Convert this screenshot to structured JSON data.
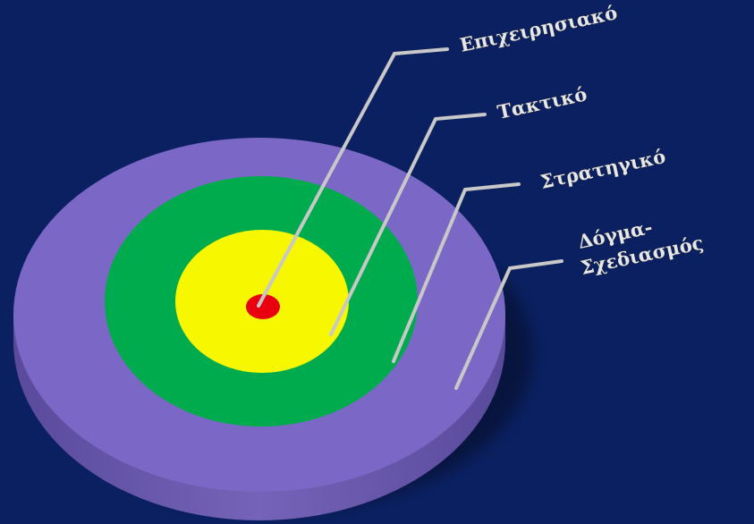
{
  "diagram": {
    "type": "target-rings",
    "rings": [
      {
        "name": "outer-ring",
        "color": "#7b68c6"
      },
      {
        "name": "middle-ring",
        "color": "#00ab4e"
      },
      {
        "name": "inner-ring",
        "color": "#f7f700"
      },
      {
        "name": "center-dot",
        "color": "#e8000e"
      }
    ],
    "background_color": "#0b2060",
    "leader_line_color": "#c8c8c8",
    "labels": {
      "operational": "Επιχειρησιακό",
      "tactical": "Τακτικό",
      "strategic": "Στρατηγικό",
      "doctrine_line1": "Δόγμα-",
      "doctrine_line2": "Σχεδιασμός"
    }
  }
}
